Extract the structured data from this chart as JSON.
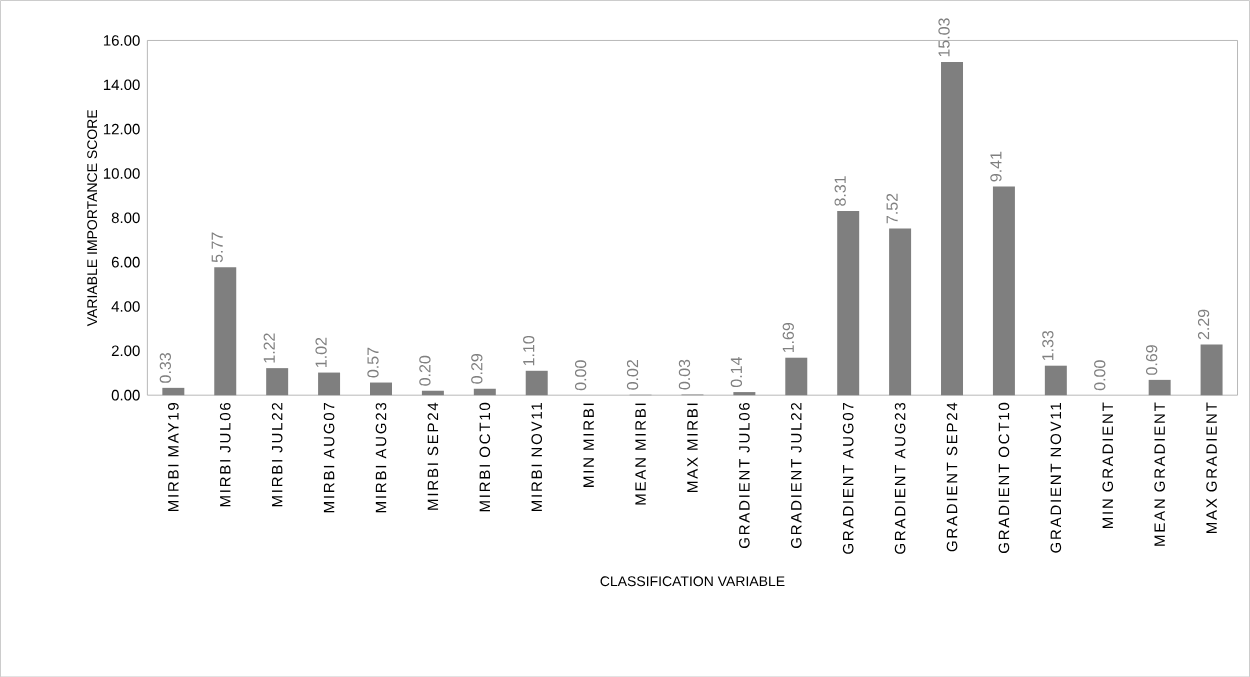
{
  "chart_data": {
    "type": "bar",
    "xlabel": "CLASSIFICATION VARIABLE",
    "ylabel": "VARIABLE IMPORTANCE SCORE",
    "categories": [
      "MIRBI MAY19",
      "MIRBI JUL06",
      "MIRBI JUL22",
      "MIRBI AUG07",
      "MIRBI AUG23",
      "MIRBI SEP24",
      "MIRBI OCT10",
      "MIRBI NOV11",
      "MIN MIRBI",
      "MEAN MIRBI",
      "MAX MIRBI",
      "GRADIENT JUL06",
      "GRADIENT JUL22",
      "GRADIENT AUG07",
      "GRADIENT AUG23",
      "GRADIENT SEP24",
      "GRADIENT OCT10",
      "GRADIENT NOV11",
      "MIN GRADIENT",
      "MEAN GRADIENT",
      "MAX GRADIENT"
    ],
    "values": [
      0.33,
      5.77,
      1.22,
      1.02,
      0.57,
      0.2,
      0.29,
      1.1,
      0.0,
      0.02,
      0.03,
      0.14,
      1.69,
      8.31,
      7.52,
      15.03,
      9.41,
      1.33,
      0.0,
      0.69,
      2.29
    ],
    "value_labels": [
      "0.33",
      "5.77",
      "1.22",
      "1.02",
      "0.57",
      "0.20",
      "0.29",
      "1.10",
      "0.00",
      "0.02",
      "0.03",
      "0.14",
      "1.69",
      "8.31",
      "7.52",
      "15.03",
      "9.41",
      "1.33",
      "0.00",
      "0.69",
      "2.29"
    ],
    "color": "#7f7f7f",
    "grid": false,
    "ylim": [
      0,
      16
    ],
    "yticks": [
      {
        "value": 0,
        "label": "0.00"
      },
      {
        "value": 2,
        "label": "2.00"
      },
      {
        "value": 4,
        "label": "4.00"
      },
      {
        "value": 6,
        "label": "6.00"
      },
      {
        "value": 8,
        "label": "8.00"
      },
      {
        "value": 10,
        "label": "10.00"
      },
      {
        "value": 12,
        "label": "12.00"
      },
      {
        "value": 14,
        "label": "14.00"
      },
      {
        "value": 16,
        "label": "16.00"
      }
    ]
  }
}
